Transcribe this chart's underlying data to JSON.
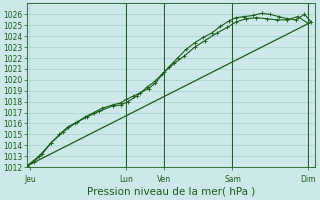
{
  "xlabel": "Pression niveau de la mer( hPa )",
  "bg_color": "#cce8e8",
  "grid_color": "#aad0d0",
  "line_color": "#1a5c1a",
  "ylim": [
    1012,
    1027
  ],
  "yticks": [
    1012,
    1013,
    1014,
    1015,
    1016,
    1017,
    1018,
    1019,
    1020,
    1021,
    1022,
    1023,
    1024,
    1025,
    1026
  ],
  "xlim": [
    0,
    8.4
  ],
  "day_labels": [
    "Jeu",
    "Lun",
    "Ven",
    "Sam",
    "Dim"
  ],
  "day_positions": [
    0.1,
    2.9,
    4.0,
    6.0,
    8.2
  ],
  "vline_positions": [
    2.9,
    4.0,
    6.0,
    8.2
  ],
  "line1_x": [
    0.0,
    0.2,
    0.45,
    0.7,
    0.95,
    1.2,
    1.45,
    1.7,
    1.95,
    2.2,
    2.5,
    2.75,
    2.9,
    3.1,
    3.3,
    3.55,
    3.75,
    3.95,
    4.15,
    4.4,
    4.65,
    4.9,
    5.15,
    5.4,
    5.65,
    5.9,
    6.1,
    6.35,
    6.6,
    6.85,
    7.1,
    7.35,
    7.6,
    7.85,
    8.1,
    8.3
  ],
  "line1_y": [
    1012.1,
    1012.5,
    1013.2,
    1014.2,
    1015.0,
    1015.7,
    1016.1,
    1016.6,
    1017.0,
    1017.4,
    1017.7,
    1017.9,
    1018.2,
    1018.5,
    1018.8,
    1019.2,
    1019.7,
    1020.5,
    1021.2,
    1022.0,
    1022.8,
    1023.4,
    1023.9,
    1024.3,
    1024.9,
    1025.4,
    1025.7,
    1025.8,
    1025.9,
    1026.1,
    1026.0,
    1025.8,
    1025.6,
    1025.5,
    1026.0,
    1025.3
  ],
  "line2_x": [
    0.0,
    0.35,
    0.7,
    1.05,
    1.4,
    1.75,
    2.1,
    2.5,
    2.75,
    2.95,
    3.2,
    3.5,
    3.75,
    4.0,
    4.3,
    4.6,
    4.9,
    5.2,
    5.55,
    5.85,
    6.1,
    6.4,
    6.7,
    7.0,
    7.3,
    7.6,
    7.9,
    8.2
  ],
  "line2_y": [
    1012.1,
    1013.0,
    1014.2,
    1015.2,
    1016.0,
    1016.6,
    1017.1,
    1017.6,
    1017.7,
    1018.0,
    1018.5,
    1019.3,
    1019.9,
    1020.7,
    1021.5,
    1022.2,
    1023.0,
    1023.6,
    1024.3,
    1024.8,
    1025.3,
    1025.6,
    1025.7,
    1025.6,
    1025.5,
    1025.5,
    1025.8,
    1025.2
  ],
  "line3_x": [
    0.0,
    8.3
  ],
  "line3_y": [
    1012.1,
    1025.3
  ],
  "fontsize_tick": 5.5,
  "fontsize_xlabel": 7.5
}
